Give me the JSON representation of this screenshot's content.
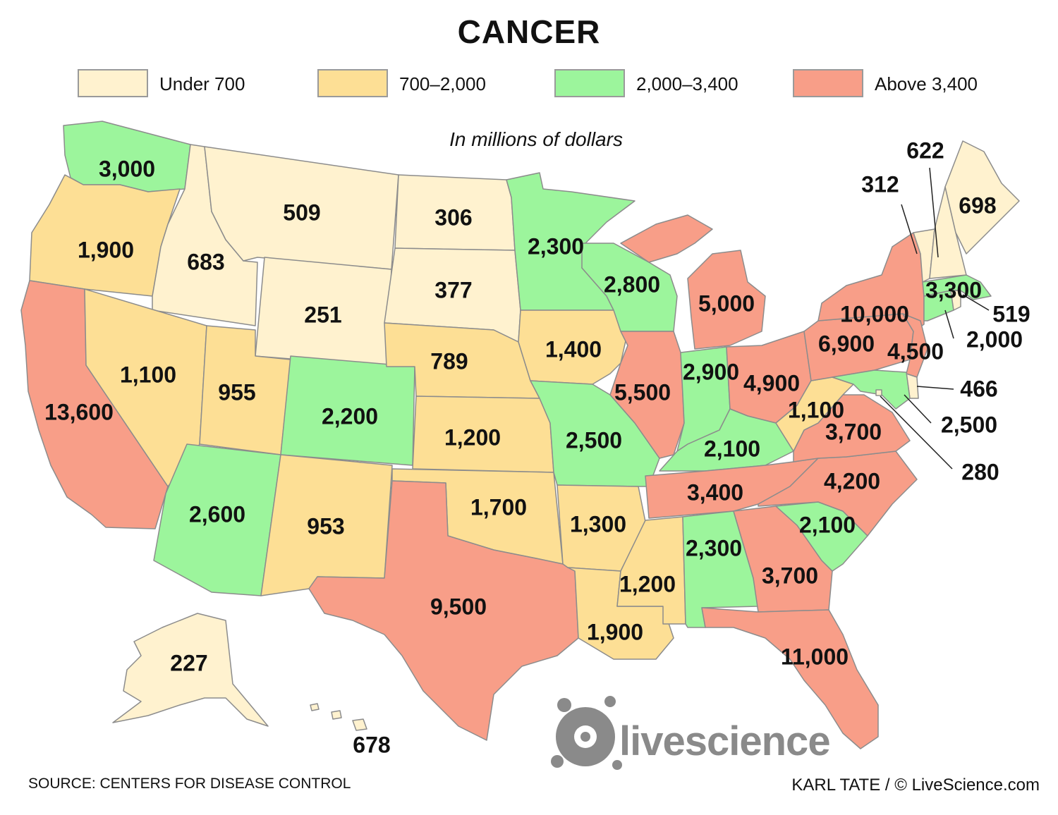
{
  "title": "CANCER",
  "units": "In millions of dollars",
  "legend": [
    {
      "label": "Under 700",
      "color": "#fff2cf"
    },
    {
      "label": "700–2,000",
      "color": "#fddf95"
    },
    {
      "label": "2,000–3,400",
      "color": "#9cf59c"
    },
    {
      "label": "Above 3,400",
      "color": "#f89e88"
    }
  ],
  "states": [
    {
      "name": "WA",
      "value": "3,000",
      "bin": 2
    },
    {
      "name": "OR",
      "value": "1,900",
      "bin": 1
    },
    {
      "name": "CA",
      "value": "13,600",
      "bin": 3
    },
    {
      "name": "ID",
      "value": "683",
      "bin": 0
    },
    {
      "name": "NV",
      "value": "1,100",
      "bin": 1
    },
    {
      "name": "MT",
      "value": "509",
      "bin": 0
    },
    {
      "name": "WY",
      "value": "251",
      "bin": 0
    },
    {
      "name": "UT",
      "value": "955",
      "bin": 1
    },
    {
      "name": "AZ",
      "value": "2,600",
      "bin": 2
    },
    {
      "name": "CO",
      "value": "2,200",
      "bin": 2
    },
    {
      "name": "NM",
      "value": "953",
      "bin": 1
    },
    {
      "name": "ND",
      "value": "306",
      "bin": 0
    },
    {
      "name": "SD",
      "value": "377",
      "bin": 0
    },
    {
      "name": "NE",
      "value": "789",
      "bin": 1
    },
    {
      "name": "KS",
      "value": "1,200",
      "bin": 1
    },
    {
      "name": "OK",
      "value": "1,700",
      "bin": 1
    },
    {
      "name": "TX",
      "value": "9,500",
      "bin": 3
    },
    {
      "name": "MN",
      "value": "2,300",
      "bin": 2
    },
    {
      "name": "IA",
      "value": "1,400",
      "bin": 1
    },
    {
      "name": "MO",
      "value": "2,500",
      "bin": 2
    },
    {
      "name": "AR",
      "value": "1,300",
      "bin": 1
    },
    {
      "name": "LA",
      "value": "1,900",
      "bin": 1
    },
    {
      "name": "WI",
      "value": "2,800",
      "bin": 2
    },
    {
      "name": "IL",
      "value": "5,500",
      "bin": 3
    },
    {
      "name": "MI",
      "value": "5,000",
      "bin": 3
    },
    {
      "name": "IN",
      "value": "2,900",
      "bin": 2
    },
    {
      "name": "OH",
      "value": "4,900",
      "bin": 3
    },
    {
      "name": "KY",
      "value": "2,100",
      "bin": 2
    },
    {
      "name": "TN",
      "value": "3,400",
      "bin": 3
    },
    {
      "name": "MS",
      "value": "1,200",
      "bin": 1
    },
    {
      "name": "AL",
      "value": "2,300",
      "bin": 2
    },
    {
      "name": "GA",
      "value": "3,700",
      "bin": 3
    },
    {
      "name": "FL",
      "value": "11,000",
      "bin": 3
    },
    {
      "name": "SC",
      "value": "2,100",
      "bin": 2
    },
    {
      "name": "NC",
      "value": "4,200",
      "bin": 3
    },
    {
      "name": "VA",
      "value": "3,700",
      "bin": 3
    },
    {
      "name": "WV",
      "value": "1,100",
      "bin": 1
    },
    {
      "name": "PA",
      "value": "6,900",
      "bin": 3
    },
    {
      "name": "NY",
      "value": "10,000",
      "bin": 3
    },
    {
      "name": "NJ",
      "value": "4,500",
      "bin": 3
    },
    {
      "name": "DE",
      "value": "466",
      "bin": 0
    },
    {
      "name": "MD",
      "value": "2,500",
      "bin": 2
    },
    {
      "name": "DC",
      "value": "280",
      "bin": 0
    },
    {
      "name": "CT",
      "value": "2,000",
      "bin": 2
    },
    {
      "name": "RI",
      "value": "519",
      "bin": 0
    },
    {
      "name": "MA",
      "value": "3,300",
      "bin": 2
    },
    {
      "name": "VT",
      "value": "312",
      "bin": 0
    },
    {
      "name": "NH",
      "value": "622",
      "bin": 0
    },
    {
      "name": "ME",
      "value": "698",
      "bin": 0
    },
    {
      "name": "AK",
      "value": "227",
      "bin": 0
    },
    {
      "name": "HI",
      "value": "678",
      "bin": 0
    }
  ],
  "source": "SOURCE: CENTERS FOR DISEASE CONTROL",
  "credit": "KARL TATE / © LiveScience.com",
  "logo": "livescience"
}
